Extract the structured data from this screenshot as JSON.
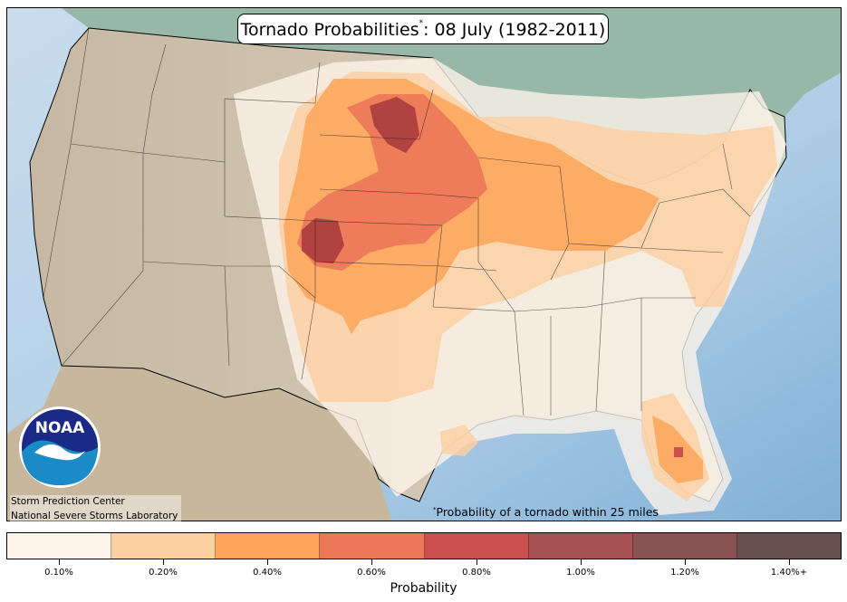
{
  "map": {
    "title": "Tornado Probabilities",
    "title_marker": "*",
    "title_suffix": ": 08 July (1982-2011)",
    "footnote_marker": "*",
    "footnote": "Probability of a tornado within 25 miles",
    "credits": [
      "Storm Prediction Center",
      "National Severe Storms Laboratory"
    ],
    "logo_text": "NOAA",
    "colors": {
      "ocean": "#9cc2df",
      "land": "#c9bca6",
      "canada": "#8fb3a3",
      "mexico": "#c4b49a",
      "border": "#000000"
    }
  },
  "legend": {
    "title": "Probability",
    "levels": [
      {
        "label": "0.10%",
        "color": "#fff5ea"
      },
      {
        "label": "0.20%",
        "color": "#fdd0a2"
      },
      {
        "label": "0.40%",
        "color": "#fda55a"
      },
      {
        "label": "0.60%",
        "color": "#ec7658"
      },
      {
        "label": "0.80%",
        "color": "#cc4f50"
      },
      {
        "label": "1.00%",
        "color": "#a75252"
      },
      {
        "label": "1.20%",
        "color": "#885252"
      },
      {
        "label": "1.40%+",
        "color": "#6b5050"
      }
    ]
  }
}
